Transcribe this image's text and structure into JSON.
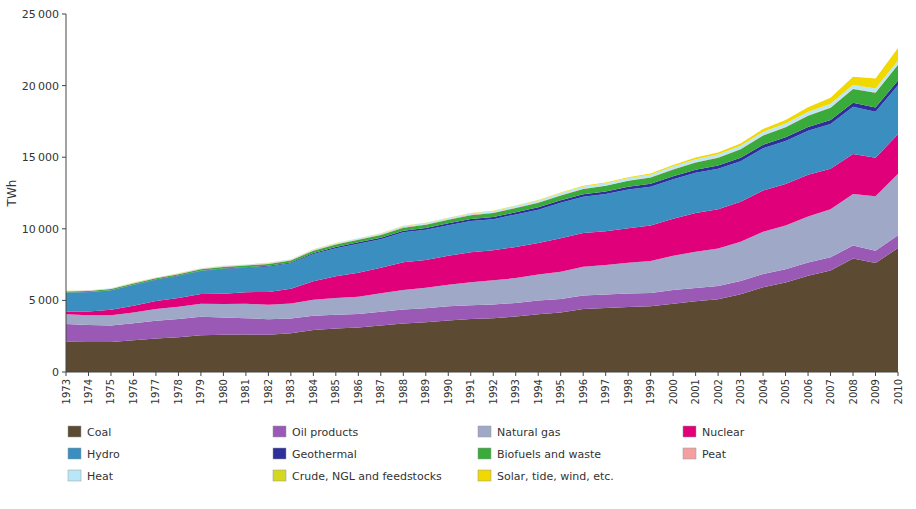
{
  "chart_data": {
    "type": "area",
    "stacked": true,
    "ylabel": "TWh",
    "x": [
      1973,
      1974,
      1975,
      1976,
      1977,
      1978,
      1979,
      1980,
      1981,
      1982,
      1983,
      1984,
      1985,
      1986,
      1987,
      1988,
      1989,
      1990,
      1991,
      1992,
      1993,
      1994,
      1995,
      1996,
      1997,
      1998,
      1999,
      2000,
      2001,
      2002,
      2003,
      2004,
      2005,
      2006,
      2007,
      2008,
      2009,
      2010
    ],
    "xlim": [
      1973,
      2010
    ],
    "xticks": [
      1973,
      1974,
      1975,
      1976,
      1977,
      1978,
      1979,
      1980,
      1981,
      1982,
      1983,
      1984,
      1985,
      1986,
      1987,
      1988,
      1989,
      1990,
      1991,
      1992,
      1993,
      1994,
      1995,
      1996,
      1997,
      1998,
      1999,
      2000,
      2001,
      2002,
      2003,
      2004,
      2005,
      2006,
      2007,
      2008,
      2009,
      2010
    ],
    "ylim": [
      0,
      25000
    ],
    "yticks": [
      0,
      {
        "value": 5000,
        "label": "5 000"
      },
      {
        "value": 10000,
        "label": "10 000"
      },
      {
        "value": 15000,
        "label": "15 000"
      },
      {
        "value": 20000,
        "label": "20 000"
      },
      {
        "value": 25000,
        "label": "25 000"
      }
    ],
    "grid": false,
    "legend": "bottom",
    "series": [
      {
        "name": "Coal",
        "color": "#5c4a32",
        "values": [
          2108,
          2095,
          2093,
          2220,
          2340,
          2431,
          2575,
          2595,
          2612,
          2607,
          2713,
          2940,
          3042,
          3103,
          3249,
          3382,
          3479,
          3605,
          3700,
          3762,
          3870,
          4040,
          4163,
          4394,
          4477,
          4533,
          4592,
          4773,
          4932,
          5072,
          5421,
          5921,
          6257,
          6720,
          7089,
          7918,
          7613,
          8657
        ]
      },
      {
        "name": "Oil products",
        "color": "#9b59b6",
        "values": [
          1249,
          1185,
          1162,
          1190,
          1242,
          1271,
          1284,
          1216,
          1150,
          1085,
          1017,
          980,
          950,
          942,
          960,
          978,
          975,
          985,
          970,
          960,
          948,
          949,
          940,
          950,
          935,
          942,
          925,
          950,
          940,
          935,
          930,
          930,
          920,
          935,
          920,
          914,
          850,
          890
        ]
      },
      {
        "name": "Natural gas",
        "color": "#a0a8c8",
        "values": [
          672,
          680,
          703,
          748,
          820,
          860,
          914,
          944,
          1001,
          1010,
          1050,
          1120,
          1170,
          1210,
          1290,
          1370,
          1430,
          1510,
          1601,
          1680,
          1740,
          1820,
          1900,
          2000,
          2060,
          2150,
          2230,
          2390,
          2520,
          2620,
          2750,
          2950,
          3060,
          3200,
          3350,
          3600,
          3810,
          4300
        ]
      },
      {
        "name": "Nuclear",
        "color": "#e0007a",
        "values": [
          203,
          267,
          381,
          476,
          555,
          600,
          680,
          714,
          811,
          886,
          1037,
          1302,
          1527,
          1683,
          1776,
          1942,
          1944,
          2013,
          2100,
          2100,
          2169,
          2200,
          2334,
          2357,
          2356,
          2417,
          2483,
          2591,
          2720,
          2746,
          2793,
          2866,
          2895,
          2928,
          2832,
          2793,
          2697,
          2756
        ]
      },
      {
        "name": "Hydro",
        "color": "#3a8fc0",
        "values": [
          1295,
          1340,
          1350,
          1440,
          1470,
          1540,
          1592,
          1724,
          1700,
          1774,
          1770,
          1900,
          1960,
          2020,
          1990,
          2080,
          2100,
          2143,
          2180,
          2170,
          2280,
          2330,
          2487,
          2540,
          2600,
          2700,
          2710,
          2760,
          2795,
          2820,
          2820,
          2950,
          3000,
          3060,
          3120,
          3290,
          3200,
          3430
        ]
      },
      {
        "name": "Geothermal",
        "color": "#2e2e9c",
        "values": [
          20,
          21,
          23,
          25,
          27,
          30,
          33,
          38,
          44,
          52,
          62,
          72,
          85,
          95,
          108,
          118,
          127,
          133,
          140,
          144,
          150,
          158,
          166,
          175,
          180,
          190,
          200,
          210,
          218,
          225,
          240,
          250,
          258,
          270,
          280,
          295,
          305,
          315
        ]
      },
      {
        "name": "Biofuels and waste",
        "color": "#3aaa3a",
        "values": [
          72,
          76,
          80,
          85,
          90,
          96,
          103,
          110,
          120,
          130,
          142,
          155,
          168,
          182,
          196,
          210,
          225,
          240,
          260,
          280,
          300,
          320,
          342,
          365,
          390,
          416,
          444,
          475,
          510,
          550,
          600,
          650,
          700,
          780,
          860,
          950,
          1020,
          1100
        ]
      },
      {
        "name": "Peat",
        "color": "#f4a0a0",
        "values": [
          25,
          26,
          27,
          28,
          29,
          30,
          31,
          32,
          33,
          34,
          35,
          36,
          37,
          38,
          39,
          40,
          40,
          40,
          39,
          38,
          37,
          36,
          35,
          34,
          33,
          33,
          33,
          33,
          33,
          33,
          33,
          33,
          33,
          33,
          33,
          33,
          33,
          33
        ]
      },
      {
        "name": "Heat",
        "color": "#b8e8f8",
        "values": [
          20,
          21,
          22,
          24,
          26,
          28,
          30,
          33,
          36,
          40,
          45,
          50,
          55,
          60,
          65,
          72,
          78,
          85,
          92,
          100,
          108,
          116,
          125,
          135,
          145,
          155,
          165,
          175,
          185,
          195,
          205,
          215,
          225,
          235,
          245,
          255,
          265,
          275
        ]
      },
      {
        "name": "Crude, NGL and feedstocks",
        "color": "#d4d820",
        "values": [
          5,
          5,
          5,
          5,
          5,
          5,
          5,
          5,
          5,
          5,
          5,
          5,
          5,
          5,
          5,
          5,
          5,
          5,
          5,
          5,
          5,
          5,
          5,
          5,
          5,
          5,
          5,
          5,
          5,
          5,
          5,
          5,
          5,
          5,
          5,
          5,
          5,
          5
        ]
      },
      {
        "name": "Solar, tide, wind, etc.",
        "color": "#f0d800",
        "values": [
          1,
          1,
          1,
          1,
          1,
          2,
          2,
          2,
          2,
          3,
          3,
          4,
          5,
          6,
          8,
          10,
          12,
          15,
          18,
          22,
          26,
          30,
          36,
          44,
          54,
          66,
          80,
          100,
          115,
          130,
          160,
          200,
          250,
          320,
          420,
          560,
          700,
          870
        ]
      }
    ]
  }
}
